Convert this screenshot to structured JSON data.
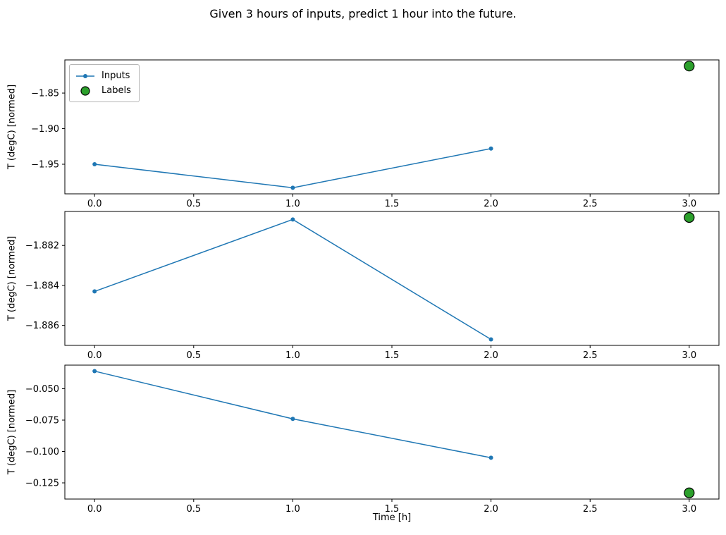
{
  "figure": {
    "title": "Given 3 hours of inputs, predict 1 hour into the future.",
    "xlabel": "Time [h]",
    "ylabel": "T (degC) [normed]",
    "legend": {
      "inputs": "Inputs",
      "labels": "Labels"
    }
  },
  "colors": {
    "inputs": "#1f77b4",
    "labels": "#2ca02c",
    "label_edge": "#000000",
    "axes": "#000000"
  },
  "chart_data": [
    {
      "type": "line",
      "title": "",
      "xlabel": "",
      "ylabel": "T (degC) [normed]",
      "x": [
        0.0,
        1.0,
        2.0
      ],
      "series": [
        {
          "name": "Inputs",
          "values": [
            -1.95,
            -1.983,
            -1.928
          ]
        }
      ],
      "label_point": {
        "name": "Labels",
        "x": 3.0,
        "y": -1.812
      },
      "xlim": [
        -0.15,
        3.15
      ],
      "ylim": [
        -1.9916,
        -1.8034
      ],
      "xticks": [
        0.0,
        0.5,
        1.0,
        1.5,
        2.0,
        2.5,
        3.0
      ],
      "xtick_labels": [
        "0.0",
        "0.5",
        "1.0",
        "1.5",
        "2.0",
        "2.5",
        "3.0"
      ],
      "yticks": [
        -1.85,
        -1.9,
        -1.95
      ],
      "ytick_labels": [
        "−1.85",
        "−1.90",
        "−1.95"
      ],
      "grid": false,
      "legend_position": "upper left"
    },
    {
      "type": "line",
      "title": "",
      "xlabel": "",
      "ylabel": "T (degC) [normed]",
      "x": [
        0.0,
        1.0,
        2.0
      ],
      "series": [
        {
          "name": "Inputs",
          "values": [
            -1.8843,
            -1.8807,
            -1.8867
          ]
        }
      ],
      "label_point": {
        "name": "Labels",
        "x": 3.0,
        "y": -1.8806
      },
      "xlim": [
        -0.15,
        3.15
      ],
      "ylim": [
        -1.887,
        -1.8803
      ],
      "xticks": [
        0.0,
        0.5,
        1.0,
        1.5,
        2.0,
        2.5,
        3.0
      ],
      "xtick_labels": [
        "0.0",
        "0.5",
        "1.0",
        "1.5",
        "2.0",
        "2.5",
        "3.0"
      ],
      "yticks": [
        -1.882,
        -1.884,
        -1.886
      ],
      "ytick_labels": [
        "−1.882",
        "−1.884",
        "−1.886"
      ],
      "grid": false,
      "legend_position": "none"
    },
    {
      "type": "line",
      "title": "",
      "xlabel": "Time [h]",
      "ylabel": "T (degC) [normed]",
      "x": [
        0.0,
        1.0,
        2.0
      ],
      "series": [
        {
          "name": "Inputs",
          "values": [
            -0.036,
            -0.074,
            -0.105
          ]
        }
      ],
      "label_point": {
        "name": "Labels",
        "x": 3.0,
        "y": -0.133
      },
      "xlim": [
        -0.15,
        3.15
      ],
      "ylim": [
        -0.1379,
        -0.0312
      ],
      "xticks": [
        0.0,
        0.5,
        1.0,
        1.5,
        2.0,
        2.5,
        3.0
      ],
      "xtick_labels": [
        "0.0",
        "0.5",
        "1.0",
        "1.5",
        "2.0",
        "2.5",
        "3.0"
      ],
      "yticks": [
        -0.05,
        -0.075,
        -0.1,
        -0.125
      ],
      "ytick_labels": [
        "−0.050",
        "−0.075",
        "−0.100",
        "−0.125"
      ],
      "grid": false,
      "legend_position": "none"
    }
  ]
}
